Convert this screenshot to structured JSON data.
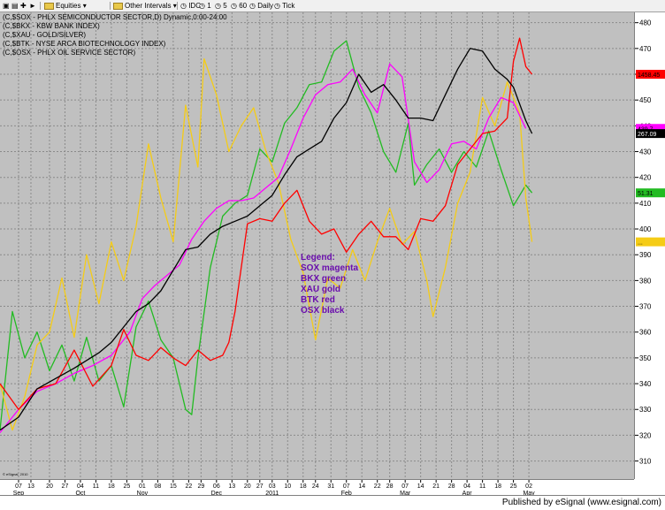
{
  "toolbar": {
    "items": [
      "Equities",
      "Other Intervals",
      "IDC",
      "1",
      "5",
      "60",
      "Daily",
      "Tick"
    ]
  },
  "chart_header": [
    "(C,$SOX - PHLX SEMICONDUCTOR SECTOR,D) Dynamic,0:00-24:00",
    "(C,$BKX - KBW BANK INDEX)",
    "(C,$XAU - GOLD/SILVER)",
    "(C,$BTK - NYSE ARCA BIOTECHNOLOGY INDEX)",
    "(C,$OSX - PHLX OIL SERVICE SECTOR)"
  ],
  "legend": {
    "title": "Legend:",
    "lines": [
      "SOX magenta",
      "BKX green",
      "XAU gold",
      "BTK red",
      "OSX black"
    ]
  },
  "copyright": "© eSignal, 2010",
  "footer_text": "Published by eSignal (www.esignal.com)",
  "colors": {
    "plot_bg": "#c0c0c0",
    "grid": "#8a8a8a",
    "SOX": "#ff00ff",
    "BKX": "#22bb22",
    "XAU": "#f5cc16",
    "BTK": "#ff0000",
    "OSX": "#000000"
  },
  "chart_data": {
    "type": "line",
    "title": "",
    "ylim": [
      303,
      484
    ],
    "yticks": [
      310,
      320,
      330,
      340,
      350,
      360,
      370,
      380,
      390,
      400,
      410,
      420,
      430,
      440,
      450,
      460,
      470,
      480
    ],
    "xlim": [
      0,
      205
    ],
    "grid": true,
    "xtick_labels": [
      {
        "x": 6,
        "day": "07",
        "month": "Sep"
      },
      {
        "x": 10,
        "day": "13"
      },
      {
        "x": 16,
        "day": "20"
      },
      {
        "x": 21,
        "day": "27"
      },
      {
        "x": 26,
        "day": "04",
        "month": "Oct"
      },
      {
        "x": 31,
        "day": "11"
      },
      {
        "x": 36,
        "day": "18"
      },
      {
        "x": 41,
        "day": "25"
      },
      {
        "x": 46,
        "day": "01",
        "month": "Nov"
      },
      {
        "x": 51,
        "day": "08"
      },
      {
        "x": 56,
        "day": "15"
      },
      {
        "x": 61,
        "day": "22"
      },
      {
        "x": 65,
        "day": "29"
      },
      {
        "x": 70,
        "day": "06",
        "month": "Dec"
      },
      {
        "x": 75,
        "day": "13"
      },
      {
        "x": 80,
        "day": "20"
      },
      {
        "x": 84,
        "day": "27"
      },
      {
        "x": 88,
        "day": "03",
        "month": "2011"
      },
      {
        "x": 93,
        "day": "10"
      },
      {
        "x": 98,
        "day": "18"
      },
      {
        "x": 102,
        "day": "24"
      },
      {
        "x": 107,
        "day": "31"
      },
      {
        "x": 112,
        "day": "07",
        "month": "Feb"
      },
      {
        "x": 117,
        "day": "14"
      },
      {
        "x": 122,
        "day": "22"
      },
      {
        "x": 126,
        "day": "28"
      },
      {
        "x": 131,
        "day": "07",
        "month": "Mar"
      },
      {
        "x": 136,
        "day": "14"
      },
      {
        "x": 141,
        "day": "21"
      },
      {
        "x": 146,
        "day": "28"
      },
      {
        "x": 151,
        "day": "04",
        "month": "Apr"
      },
      {
        "x": 156,
        "day": "11"
      },
      {
        "x": 161,
        "day": "18"
      },
      {
        "x": 166,
        "day": "25"
      },
      {
        "x": 171,
        "day": "02",
        "month": "May"
      }
    ],
    "series": [
      {
        "name": "SOX",
        "color": "#ff00ff",
        "last_label": "439.7",
        "values": [
          [
            0,
            321
          ],
          [
            6,
            330
          ],
          [
            12,
            337
          ],
          [
            18,
            340
          ],
          [
            24,
            344
          ],
          [
            30,
            347
          ],
          [
            36,
            351
          ],
          [
            42,
            360
          ],
          [
            46,
            373
          ],
          [
            50,
            378
          ],
          [
            54,
            382
          ],
          [
            58,
            386
          ],
          [
            62,
            396
          ],
          [
            66,
            403
          ],
          [
            70,
            408
          ],
          [
            74,
            411
          ],
          [
            78,
            411
          ],
          [
            82,
            412
          ],
          [
            86,
            416
          ],
          [
            90,
            420
          ],
          [
            94,
            431
          ],
          [
            98,
            443
          ],
          [
            102,
            452
          ],
          [
            106,
            456
          ],
          [
            110,
            457
          ],
          [
            114,
            462
          ],
          [
            118,
            452
          ],
          [
            122,
            445
          ],
          [
            126,
            464
          ],
          [
            130,
            459
          ],
          [
            134,
            426
          ],
          [
            138,
            418
          ],
          [
            142,
            423
          ],
          [
            146,
            433
          ],
          [
            150,
            434
          ],
          [
            154,
            431
          ],
          [
            158,
            443
          ],
          [
            162,
            451
          ],
          [
            166,
            449
          ],
          [
            170,
            439
          ]
        ]
      },
      {
        "name": "BKX",
        "color": "#22bb22",
        "last_label": "51.31",
        "values": [
          [
            0,
            322
          ],
          [
            4,
            368
          ],
          [
            8,
            350
          ],
          [
            12,
            360
          ],
          [
            16,
            345
          ],
          [
            20,
            355
          ],
          [
            24,
            341
          ],
          [
            28,
            358
          ],
          [
            32,
            341
          ],
          [
            36,
            347
          ],
          [
            40,
            331
          ],
          [
            44,
            362
          ],
          [
            48,
            372
          ],
          [
            52,
            357
          ],
          [
            56,
            350
          ],
          [
            60,
            330
          ],
          [
            62,
            328
          ],
          [
            64,
            350
          ],
          [
            68,
            385
          ],
          [
            72,
            405
          ],
          [
            76,
            410
          ],
          [
            80,
            413
          ],
          [
            84,
            431
          ],
          [
            88,
            426
          ],
          [
            92,
            441
          ],
          [
            96,
            447
          ],
          [
            100,
            456
          ],
          [
            104,
            457
          ],
          [
            108,
            469
          ],
          [
            112,
            473
          ],
          [
            116,
            455
          ],
          [
            120,
            445
          ],
          [
            124,
            430
          ],
          [
            128,
            422
          ],
          [
            132,
            441
          ],
          [
            134,
            417
          ],
          [
            138,
            425
          ],
          [
            142,
            431
          ],
          [
            146,
            422
          ],
          [
            150,
            430
          ],
          [
            154,
            424
          ],
          [
            158,
            438
          ],
          [
            162,
            423
          ],
          [
            166,
            409
          ],
          [
            170,
            417
          ],
          [
            172,
            414
          ]
        ]
      },
      {
        "name": "XAU",
        "color": "#f5cc16",
        "last_label": "...",
        "values": [
          [
            0,
            340
          ],
          [
            4,
            322
          ],
          [
            8,
            335
          ],
          [
            12,
            355
          ],
          [
            16,
            360
          ],
          [
            20,
            381
          ],
          [
            24,
            358
          ],
          [
            28,
            390
          ],
          [
            32,
            371
          ],
          [
            36,
            395
          ],
          [
            40,
            380
          ],
          [
            44,
            401
          ],
          [
            48,
            433
          ],
          [
            52,
            412
          ],
          [
            56,
            395
          ],
          [
            60,
            448
          ],
          [
            64,
            424
          ],
          [
            66,
            466
          ],
          [
            70,
            452
          ],
          [
            74,
            430
          ],
          [
            78,
            440
          ],
          [
            82,
            447
          ],
          [
            86,
            430
          ],
          [
            90,
            418
          ],
          [
            94,
            396
          ],
          [
            98,
            383
          ],
          [
            102,
            357
          ],
          [
            106,
            381
          ],
          [
            110,
            377
          ],
          [
            114,
            392
          ],
          [
            118,
            380
          ],
          [
            122,
            395
          ],
          [
            126,
            408
          ],
          [
            130,
            394
          ],
          [
            134,
            399
          ],
          [
            138,
            380
          ],
          [
            140,
            366
          ],
          [
            144,
            385
          ],
          [
            148,
            410
          ],
          [
            152,
            422
          ],
          [
            156,
            451
          ],
          [
            160,
            440
          ],
          [
            164,
            457
          ],
          [
            168,
            445
          ],
          [
            170,
            412
          ],
          [
            172,
            395
          ]
        ]
      },
      {
        "name": "BTK",
        "color": "#ff0000",
        "last_label": "1458.45",
        "values": [
          [
            0,
            340
          ],
          [
            6,
            330
          ],
          [
            12,
            338
          ],
          [
            18,
            340
          ],
          [
            24,
            353
          ],
          [
            30,
            339
          ],
          [
            36,
            347
          ],
          [
            40,
            361
          ],
          [
            44,
            351
          ],
          [
            48,
            349
          ],
          [
            52,
            354
          ],
          [
            56,
            350
          ],
          [
            60,
            347
          ],
          [
            64,
            353
          ],
          [
            68,
            349
          ],
          [
            72,
            351
          ],
          [
            74,
            356
          ],
          [
            76,
            368
          ],
          [
            80,
            402
          ],
          [
            84,
            404
          ],
          [
            88,
            403
          ],
          [
            92,
            410
          ],
          [
            96,
            415
          ],
          [
            100,
            403
          ],
          [
            104,
            398
          ],
          [
            108,
            400
          ],
          [
            112,
            391
          ],
          [
            116,
            398
          ],
          [
            120,
            403
          ],
          [
            124,
            397
          ],
          [
            128,
            397
          ],
          [
            132,
            392
          ],
          [
            136,
            404
          ],
          [
            140,
            403
          ],
          [
            144,
            409
          ],
          [
            148,
            425
          ],
          [
            152,
            431
          ],
          [
            156,
            437
          ],
          [
            160,
            438
          ],
          [
            164,
            443
          ],
          [
            166,
            465
          ],
          [
            168,
            474
          ],
          [
            170,
            463
          ],
          [
            172,
            460
          ]
        ]
      },
      {
        "name": "OSX",
        "color": "#000000",
        "last_label": "267.09",
        "values": [
          [
            0,
            322
          ],
          [
            6,
            327
          ],
          [
            12,
            338
          ],
          [
            18,
            342
          ],
          [
            24,
            346
          ],
          [
            28,
            349
          ],
          [
            32,
            352
          ],
          [
            36,
            356
          ],
          [
            40,
            362
          ],
          [
            44,
            368
          ],
          [
            48,
            371
          ],
          [
            52,
            376
          ],
          [
            56,
            384
          ],
          [
            60,
            392
          ],
          [
            64,
            393
          ],
          [
            68,
            398
          ],
          [
            72,
            401
          ],
          [
            76,
            403
          ],
          [
            80,
            405
          ],
          [
            84,
            409
          ],
          [
            88,
            413
          ],
          [
            92,
            421
          ],
          [
            96,
            428
          ],
          [
            100,
            431
          ],
          [
            104,
            434
          ],
          [
            108,
            443
          ],
          [
            112,
            449
          ],
          [
            116,
            460
          ],
          [
            120,
            453
          ],
          [
            124,
            456
          ],
          [
            128,
            450
          ],
          [
            132,
            443
          ],
          [
            136,
            443
          ],
          [
            140,
            442
          ],
          [
            144,
            452
          ],
          [
            148,
            462
          ],
          [
            152,
            470
          ],
          [
            156,
            469
          ],
          [
            160,
            462
          ],
          [
            164,
            458
          ],
          [
            166,
            455
          ],
          [
            170,
            442
          ],
          [
            172,
            437
          ]
        ]
      }
    ]
  }
}
